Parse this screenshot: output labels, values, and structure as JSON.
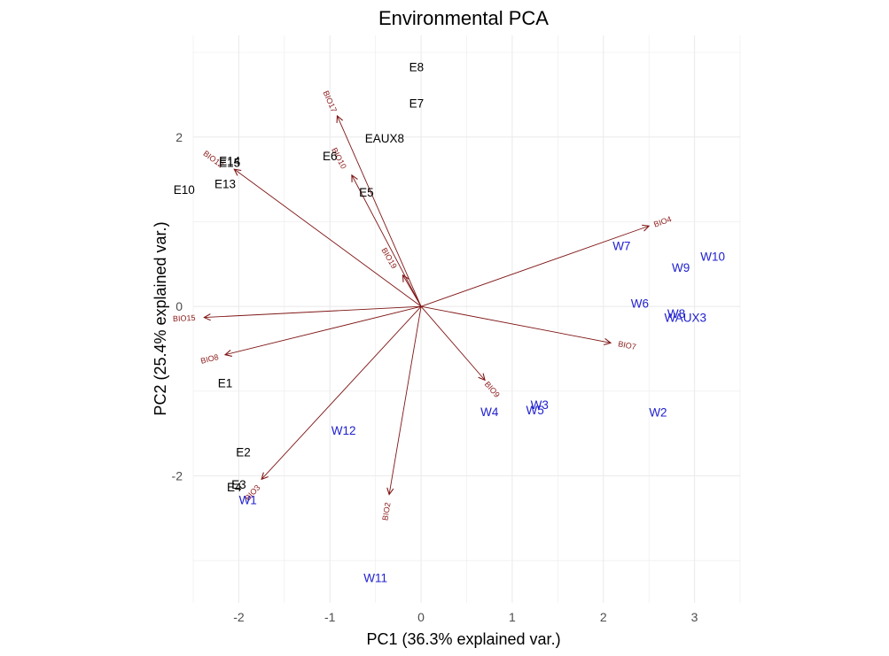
{
  "chart_data": {
    "type": "scatter",
    "title": "Environmental PCA",
    "xlabel": "PC1 (36.3% explained var.)",
    "ylabel": "PC2 (25.4% explained var.)",
    "xlim": [
      -2.5,
      3.5
    ],
    "ylim": [
      -3.5,
      3.2
    ],
    "xticks": [
      -2,
      -1,
      0,
      1,
      2,
      3
    ],
    "yticks": [
      -2,
      0,
      2
    ],
    "grid": true,
    "colors": {
      "group_E": "#000000",
      "group_W": "#2020d0",
      "loadings": "#7f1515",
      "grid": "#ebebeb"
    },
    "groups": [
      {
        "color_key": "group_E",
        "points": [
          {
            "label": "E1",
            "x": -2.15,
            "y": -0.9
          },
          {
            "label": "E2",
            "x": -1.95,
            "y": -1.72
          },
          {
            "label": "E3",
            "x": -2.0,
            "y": -2.1
          },
          {
            "label": "E4",
            "x": -2.05,
            "y": -2.13
          },
          {
            "label": "E5",
            "x": -0.6,
            "y": 1.35
          },
          {
            "label": "E6",
            "x": -1.0,
            "y": 1.78
          },
          {
            "label": "E7",
            "x": -0.05,
            "y": 2.4
          },
          {
            "label": "E8",
            "x": -0.05,
            "y": 2.83
          },
          {
            "label": "EAUX8",
            "x": -0.4,
            "y": 1.99
          },
          {
            "label": "E10",
            "x": -2.6,
            "y": 1.38
          },
          {
            "label": "E13",
            "x": -2.15,
            "y": 1.45
          },
          {
            "label": "E14",
            "x": -2.1,
            "y": 1.72
          },
          {
            "label": "E15",
            "x": -2.1,
            "y": 1.7
          }
        ]
      },
      {
        "color_key": "group_W",
        "points": [
          {
            "label": "W1",
            "x": -1.9,
            "y": -2.28
          },
          {
            "label": "W2",
            "x": 2.6,
            "y": -1.25
          },
          {
            "label": "W3",
            "x": 1.3,
            "y": -1.16
          },
          {
            "label": "W4",
            "x": 0.75,
            "y": -1.24
          },
          {
            "label": "W5",
            "x": 1.25,
            "y": -1.22
          },
          {
            "label": "W6",
            "x": 2.4,
            "y": 0.04
          },
          {
            "label": "W7",
            "x": 2.2,
            "y": 0.72
          },
          {
            "label": "W8",
            "x": 2.8,
            "y": -0.08
          },
          {
            "label": "W9",
            "x": 2.85,
            "y": 0.46
          },
          {
            "label": "W10",
            "x": 3.2,
            "y": 0.59
          },
          {
            "label": "W11",
            "x": -0.5,
            "y": -3.2
          },
          {
            "label": "W12",
            "x": -0.85,
            "y": -1.46
          },
          {
            "label": "WAUX3",
            "x": 2.9,
            "y": -0.13
          }
        ]
      }
    ],
    "loadings": [
      {
        "label": "BIO4",
        "x": 2.5,
        "y": 0.95,
        "lx": 2.65,
        "ly": 1.0
      },
      {
        "label": "BIO7",
        "x": 2.08,
        "y": -0.43,
        "lx": 2.26,
        "ly": -0.46
      },
      {
        "label": "BIO9",
        "x": 0.7,
        "y": -0.87,
        "lx": 0.78,
        "ly": -0.98
      },
      {
        "label": "BIO2",
        "x": -0.35,
        "y": -2.22,
        "lx": -0.38,
        "ly": -2.42
      },
      {
        "label": "BIO3",
        "x": -1.75,
        "y": -2.04,
        "lx": -1.85,
        "ly": -2.2
      },
      {
        "label": "BIO8",
        "x": -2.15,
        "y": -0.57,
        "lx": -2.32,
        "ly": -0.62
      },
      {
        "label": "BIO15",
        "x": -2.38,
        "y": -0.13,
        "lx": -2.6,
        "ly": -0.14
      },
      {
        "label": "BIO12",
        "x": -2.05,
        "y": 1.62,
        "lx": -2.28,
        "ly": 1.74
      },
      {
        "label": "BIO17",
        "x": -0.92,
        "y": 2.25,
        "lx": -1.0,
        "ly": 2.42
      },
      {
        "label": "BIO10",
        "x": -0.76,
        "y": 1.55,
        "lx": -0.9,
        "ly": 1.75
      },
      {
        "label": "BIO19",
        "x": -0.2,
        "y": 0.37,
        "lx": -0.35,
        "ly": 0.57
      }
    ]
  }
}
